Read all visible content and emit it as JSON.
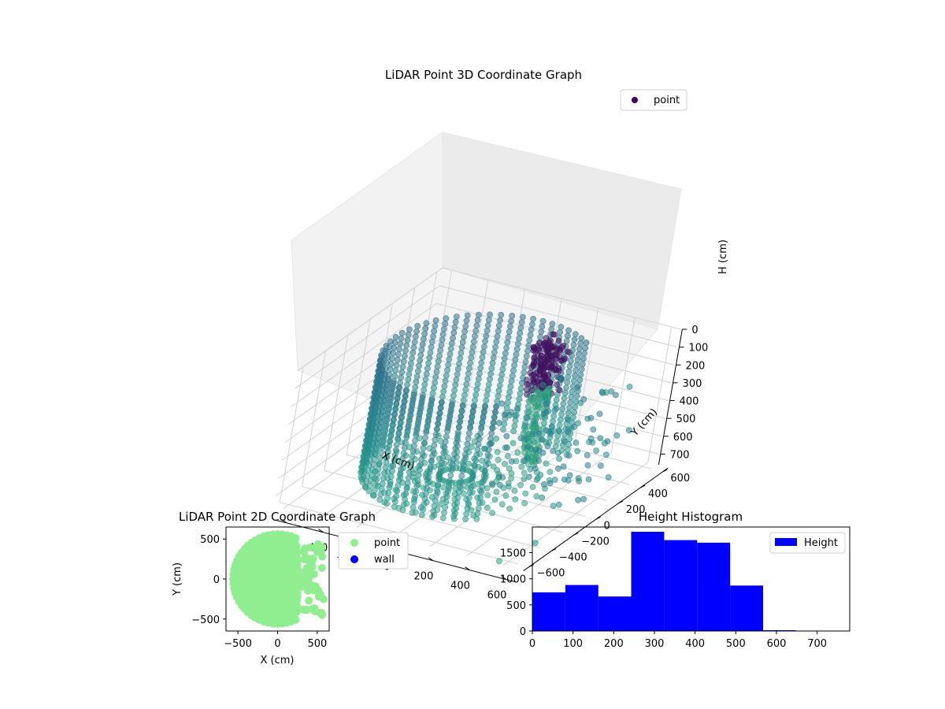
{
  "colors": {
    "viridis_dark": "#440154",
    "viridis_mid": "#31688e",
    "viridis_green": "#20a486",
    "point_2d": "#90ee90",
    "wall": "#0000ff",
    "hist_bar": "#0000ff"
  },
  "chart_data": [
    {
      "type": "scatter",
      "title": "LiDAR Point 3D Coordinate Graph",
      "xlabel": "X (cm)",
      "ylabel": "Y (cm)",
      "zlabel": "H (cm)",
      "x_ticks": [
        "−600",
        "−400",
        "−200",
        "0",
        "200",
        "400",
        "600"
      ],
      "y_ticks": [
        "−600",
        "−400",
        "−200",
        "0",
        "200",
        "400",
        "600"
      ],
      "z_ticks": [
        "0",
        "100",
        "200",
        "300",
        "400",
        "500",
        "600",
        "700"
      ],
      "xlim": [
        -650,
        650
      ],
      "ylim": [
        -650,
        650
      ],
      "zlim": [
        0,
        760
      ],
      "z_inverted": true,
      "grid": true,
      "legend": {
        "placement": "upper-right",
        "entries": [
          {
            "name": "point",
            "color": "#440154"
          }
        ]
      },
      "colormap": "viridis",
      "series": [
        {
          "name": "point",
          "shape": "ring-of-points ~ radius 500 cm, heights 0–730 cm, with a dense cluster near x 0–150, y 300–450 and scattered points on the +x side"
        }
      ]
    },
    {
      "type": "scatter",
      "title": "LiDAR Point 2D Coordinate Graph",
      "xlabel": "X (cm)",
      "ylabel": "Y (cm)",
      "x_ticks": [
        "−500",
        "0",
        "500"
      ],
      "y_ticks": [
        "−500",
        "0",
        "500"
      ],
      "xlim": [
        -650,
        650
      ],
      "ylim": [
        -650,
        650
      ],
      "legend": {
        "placement": "outside-right",
        "entries": [
          {
            "name": "point",
            "color": "#90ee90"
          },
          {
            "name": "wall",
            "color": "#0000ff"
          }
        ]
      }
    },
    {
      "type": "bar",
      "title": "Height Histogram",
      "xlabel": "",
      "ylabel": "",
      "x_ticks": [
        "0",
        "100",
        "200",
        "300",
        "400",
        "500",
        "600",
        "700"
      ],
      "y_ticks": [
        "0",
        "500",
        "1000",
        "1500"
      ],
      "xlim": [
        0,
        780
      ],
      "ylim": [
        0,
        1990
      ],
      "bin_edges": [
        0,
        81,
        162,
        243,
        324,
        405,
        486,
        567,
        648,
        729
      ],
      "values": [
        740,
        880,
        660,
        1900,
        1740,
        1690,
        870,
        15,
        0
      ],
      "legend": {
        "placement": "upper-right",
        "entries": [
          {
            "name": "Height",
            "color": "#0000ff"
          }
        ]
      }
    }
  ]
}
